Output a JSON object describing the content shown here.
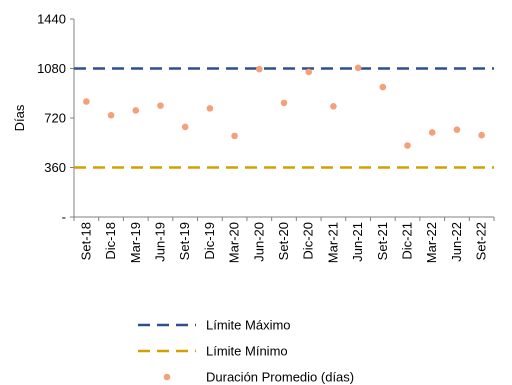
{
  "chart_data": {
    "type": "scatter",
    "title": "",
    "xlabel": "",
    "ylabel": "Días",
    "ylim": [
      0,
      1440
    ],
    "yticks": [
      {
        "value": 0,
        "label": "-"
      },
      {
        "value": 360,
        "label": "360"
      },
      {
        "value": 720,
        "label": "720"
      },
      {
        "value": 1080,
        "label": "1080"
      },
      {
        "value": 1440,
        "label": "1440"
      }
    ],
    "categories": [
      "Set-18",
      "Dic-18",
      "Mar-19",
      "Jun-19",
      "Set-19",
      "Dic-19",
      "Mar-20",
      "Jun-20",
      "Set-20",
      "Dic-20",
      "Mar-21",
      "Jun-21",
      "Set-21",
      "Dic-21",
      "Mar-22",
      "Jun-22",
      "Set-22"
    ],
    "grid": false,
    "legend_position": "bottom-center",
    "series": [
      {
        "name": "Límite Máximo",
        "kind": "hline",
        "color": "#2f4f8f",
        "value": 1080
      },
      {
        "name": "Límite Mínimo",
        "kind": "hline",
        "color": "#d4a000",
        "value": 360
      },
      {
        "name": "Duración Promedio (días)",
        "kind": "points",
        "color": "#f4a07a",
        "values": [
          840,
          740,
          775,
          810,
          655,
          790,
          590,
          1075,
          830,
          1055,
          805,
          1085,
          945,
          520,
          615,
          635,
          595
        ]
      }
    ]
  }
}
